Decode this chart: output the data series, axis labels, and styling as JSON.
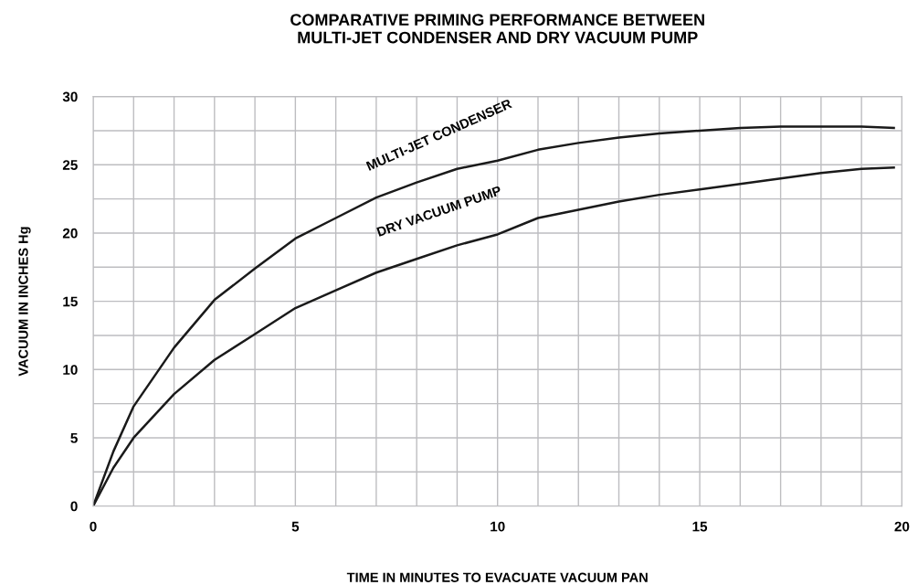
{
  "chart_data": {
    "type": "line",
    "title": "COMPARATIVE PRIMING PERFORMANCE BETWEEN\nMULTI-JET CONDENSER AND DRY VACUUM PUMP",
    "xlabel": "TIME IN MINUTES TO EVACUATE VACUUM PAN",
    "ylabel": "VACUUM IN INCHES Hg",
    "x": [
      0,
      0.5,
      1,
      2,
      3,
      4,
      5,
      6,
      7,
      8,
      9,
      10,
      11,
      12,
      13,
      14,
      15,
      16,
      17,
      18,
      19,
      19.8
    ],
    "series": [
      {
        "name": "MULTI-JET CONDENSER",
        "color": "#1a1a1a",
        "values": [
          0,
          4.0,
          7.3,
          11.6,
          15.1,
          17.4,
          19.6,
          21.1,
          22.6,
          23.7,
          24.7,
          25.3,
          26.1,
          26.6,
          27.0,
          27.3,
          27.5,
          27.7,
          27.8,
          27.8,
          27.8,
          27.7
        ]
      },
      {
        "name": "DRY VACUUM PUMP",
        "color": "#1a1a1a",
        "values": [
          0,
          2.8,
          5.0,
          8.2,
          10.7,
          12.6,
          14.5,
          15.8,
          17.1,
          18.1,
          19.1,
          19.9,
          21.1,
          21.7,
          22.3,
          22.8,
          23.2,
          23.6,
          24.0,
          24.4,
          24.7,
          24.8
        ]
      }
    ],
    "xlim": [
      0,
      20
    ],
    "ylim": [
      0,
      30
    ],
    "xticks": [
      0,
      5,
      10,
      15,
      20
    ],
    "yticks": [
      0,
      5,
      10,
      15,
      20,
      25,
      30
    ],
    "grid": true,
    "marker": "none",
    "line_style": "solid"
  }
}
